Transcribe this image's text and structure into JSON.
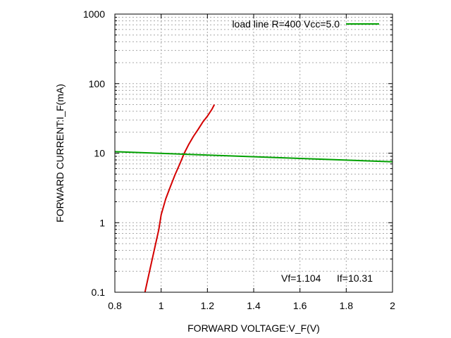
{
  "chart_data": {
    "type": "line",
    "xlabel": "FORWARD VOLTAGE:V_F(V)",
    "ylabel": "FORWARD CURRENT:I_F(mA)",
    "xlim": [
      0.8,
      2.0
    ],
    "ylim": [
      0.1,
      1000
    ],
    "yscale": "log",
    "grid": true,
    "legend_position": "top-right",
    "x_ticks": [
      "0.8",
      "1",
      "1.2",
      "1.4",
      "1.6",
      "1.8",
      "2"
    ],
    "y_ticks": [
      "0.1",
      "1",
      "10",
      "100",
      "1000"
    ],
    "series": [
      {
        "name": "",
        "color": "#d40000",
        "x": [
          0.93,
          0.95,
          0.97,
          0.99,
          1.0,
          1.02,
          1.04,
          1.06,
          1.08,
          1.1,
          1.12,
          1.14,
          1.16,
          1.18,
          1.2,
          1.22,
          1.23
        ],
        "y": [
          0.1,
          0.2,
          0.4,
          0.8,
          1.3,
          2.2,
          3.3,
          4.9,
          6.9,
          10,
          13.5,
          17.5,
          22,
          28,
          34,
          43,
          50
        ]
      },
      {
        "name": "load line R=400 Vcc=5.0",
        "color": "#00a000",
        "x": [
          0.8,
          2.0
        ],
        "y": [
          10.5,
          7.5
        ]
      }
    ],
    "annotations": [
      "Vf=1.104",
      "If=10.31"
    ]
  }
}
